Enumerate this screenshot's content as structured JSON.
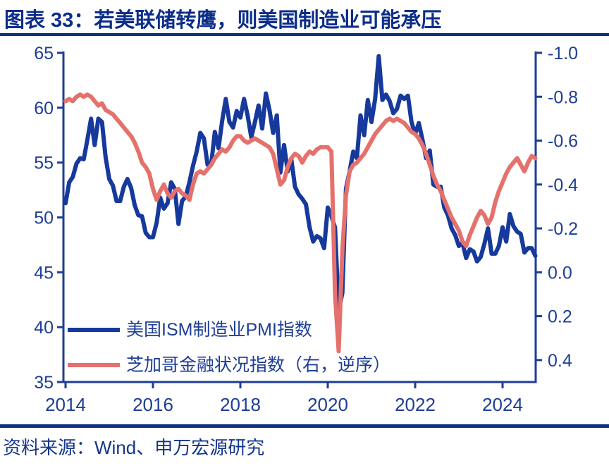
{
  "title": "图表 33：若美联储转鹰，则美国制造业可能承压",
  "source": "资料来源：Wind、申万宏源研究",
  "colors": {
    "navy_text": "#1e3d96",
    "axis": "#1e3d96",
    "title_navy": "#0c2d8a",
    "rule_navy": "#10307e",
    "pmi_blue": "#16399b",
    "nfci_coral": "#e4716c"
  },
  "chart_data": {
    "type": "line",
    "title": "图表 33：若美联储转鹰，则美国制造业可能承压",
    "grid": false,
    "legend_position": "inside-lower-left",
    "x_start_year": 2014,
    "x_interval_months": 1,
    "x_ticks": [
      2014,
      2016,
      2018,
      2020,
      2022,
      2024
    ],
    "x_tick_labels": [
      "2014",
      "2016",
      "2018",
      "2020",
      "2022",
      "2024"
    ],
    "left_axis": {
      "top_value": 65,
      "bottom_value": 35,
      "ticks": [
        65,
        60,
        55,
        50,
        45,
        40,
        35
      ],
      "tick_labels": [
        "65",
        "60",
        "55",
        "50",
        "45",
        "40",
        "35"
      ]
    },
    "right_axis": {
      "top_value": -1.0,
      "bottom_value": 0.5,
      "inverted": true,
      "ticks": [
        -1.0,
        -0.8,
        -0.6,
        -0.4,
        -0.2,
        0.0,
        0.2,
        0.4
      ],
      "tick_labels": [
        "-1.0",
        "-0.8",
        "-0.6",
        "-0.4",
        "-0.2",
        "0.0",
        "0.2",
        "0.4"
      ]
    },
    "series": [
      {
        "name": "美国ISM制造业PMI指数",
        "axis": "left",
        "color": "#16399b",
        "values": [
          51.3,
          53.2,
          53.7,
          54.9,
          55.4,
          55.3,
          57.1,
          59.0,
          56.6,
          59.0,
          58.7,
          55.5,
          53.5,
          52.9,
          51.5,
          51.5,
          52.8,
          53.5,
          52.7,
          51.1,
          50.2,
          50.1,
          48.6,
          48.2,
          48.2,
          49.5,
          51.8,
          50.8,
          51.3,
          53.2,
          52.6,
          49.4,
          51.5,
          51.9,
          53.2,
          54.7,
          56.0,
          57.7,
          57.2,
          54.8,
          54.9,
          57.8,
          56.3,
          58.8,
          60.8,
          58.7,
          58.2,
          59.7,
          59.1,
          60.8,
          59.3,
          57.3,
          58.7,
          60.2,
          58.1,
          61.3,
          59.8,
          57.7,
          59.3,
          54.1,
          56.6,
          54.2,
          55.3,
          52.8,
          52.1,
          51.7,
          51.2,
          49.1,
          47.8,
          48.3,
          48.1,
          47.2,
          50.9,
          50.1,
          49.1,
          41.5,
          43.1,
          52.6,
          54.2,
          56.0,
          55.4,
          59.3,
          57.5,
          60.7,
          58.7,
          60.8,
          64.7,
          60.7,
          61.2,
          60.6,
          59.5,
          59.9,
          61.1,
          60.8,
          61.1,
          58.7,
          57.6,
          58.6,
          57.1,
          55.4,
          56.1,
          53.0,
          52.8,
          52.8,
          50.9,
          50.2,
          49.0,
          48.4,
          47.4,
          47.7,
          46.3,
          47.1,
          46.9,
          46.0,
          46.4,
          47.6,
          49.0,
          46.7,
          46.7,
          47.4,
          49.1,
          47.8,
          50.3,
          49.2,
          48.7,
          48.5,
          46.8,
          47.2,
          47.2,
          46.5
        ]
      },
      {
        "name": "芝加哥金融状况指数（右，逆序）",
        "axis": "right",
        "color": "#e4716c",
        "values": [
          -0.78,
          -0.79,
          -0.78,
          -0.8,
          -0.81,
          -0.8,
          -0.81,
          -0.8,
          -0.78,
          -0.76,
          -0.77,
          -0.74,
          -0.73,
          -0.72,
          -0.7,
          -0.68,
          -0.66,
          -0.64,
          -0.62,
          -0.59,
          -0.55,
          -0.5,
          -0.48,
          -0.45,
          -0.38,
          -0.33,
          -0.37,
          -0.4,
          -0.36,
          -0.34,
          -0.37,
          -0.38,
          -0.36,
          -0.35,
          -0.33,
          -0.4,
          -0.45,
          -0.46,
          -0.45,
          -0.47,
          -0.49,
          -0.52,
          -0.54,
          -0.56,
          -0.55,
          -0.57,
          -0.6,
          -0.62,
          -0.62,
          -0.6,
          -0.59,
          -0.6,
          -0.61,
          -0.6,
          -0.59,
          -0.58,
          -0.57,
          -0.54,
          -0.47,
          -0.4,
          -0.42,
          -0.48,
          -0.52,
          -0.54,
          -0.53,
          -0.5,
          -0.53,
          -0.55,
          -0.54,
          -0.56,
          -0.57,
          -0.57,
          -0.57,
          -0.55,
          0.1,
          0.36,
          -0.1,
          -0.35,
          -0.46,
          -0.49,
          -0.5,
          -0.52,
          -0.54,
          -0.57,
          -0.6,
          -0.63,
          -0.65,
          -0.67,
          -0.69,
          -0.7,
          -0.69,
          -0.7,
          -0.69,
          -0.68,
          -0.66,
          -0.64,
          -0.63,
          -0.61,
          -0.58,
          -0.54,
          -0.49,
          -0.44,
          -0.4,
          -0.37,
          -0.33,
          -0.29,
          -0.25,
          -0.22,
          -0.19,
          -0.14,
          -0.12,
          -0.17,
          -0.21,
          -0.25,
          -0.28,
          -0.26,
          -0.22,
          -0.25,
          -0.32,
          -0.37,
          -0.41,
          -0.45,
          -0.48,
          -0.5,
          -0.52,
          -0.49,
          -0.46,
          -0.5,
          -0.53,
          -0.52
        ]
      }
    ]
  }
}
